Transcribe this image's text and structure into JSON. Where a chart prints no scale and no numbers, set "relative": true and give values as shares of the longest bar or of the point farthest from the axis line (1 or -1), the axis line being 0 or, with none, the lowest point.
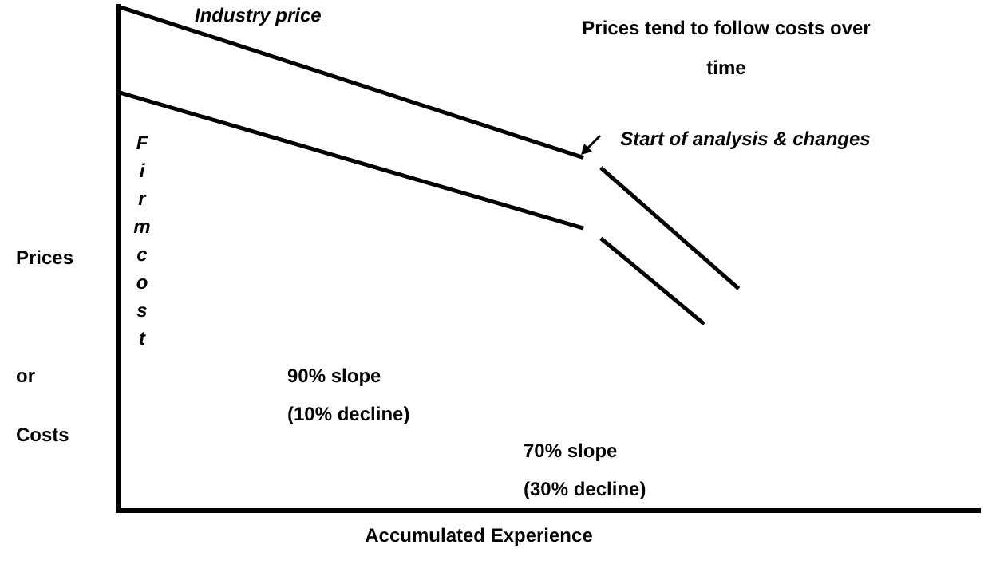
{
  "chart_data": {
    "type": "line",
    "relative": true,
    "grid": false,
    "legend": false,
    "marker": "none",
    "line_style": "solid",
    "xlabel": "Accumulated Experience",
    "ylabel": "Prices or Costs",
    "categories": [
      null,
      null,
      null,
      null,
      null,
      null,
      null,
      null,
      null,
      null,
      null,
      null,
      null,
      null,
      null,
      null,
      null,
      null,
      null,
      null,
      null,
      null,
      null,
      null,
      null,
      null,
      null,
      null,
      null,
      null,
      null,
      null,
      null,
      null,
      null,
      null,
      null,
      null,
      null,
      null,
      null,
      null,
      null,
      null,
      null,
      null,
      null,
      null,
      null,
      null,
      null
    ],
    "series": [
      {
        "name": "Industry price",
        "color": "#000000",
        "values": [
          1,
          null,
          null,
          null,
          null,
          null,
          null,
          null,
          null,
          null,
          null,
          null,
          null,
          null,
          null,
          null,
          null,
          null,
          null,
          null,
          null,
          null,
          null,
          null,
          null,
          null,
          null,
          0.7,
          null,
          null,
          null,
          null,
          null,
          null,
          null,
          null,
          null,
          null,
          null,
          null,
          null,
          null,
          null,
          null,
          null,
          null,
          null,
          null,
          null,
          null,
          null
        ]
      },
      {
        "color": "#000000",
        "values": [
          null,
          null,
          null,
          null,
          null,
          null,
          null,
          null,
          null,
          null,
          null,
          null,
          null,
          null,
          null,
          null,
          null,
          null,
          null,
          null,
          null,
          null,
          null,
          null,
          null,
          null,
          null,
          null,
          0.68,
          null,
          null,
          null,
          null,
          null,
          null,
          null,
          0.44,
          null,
          null,
          null,
          null,
          null,
          null,
          null,
          null,
          null,
          null,
          null,
          null,
          null,
          null
        ]
      },
      {
        "name": "Firm cost",
        "color": "#000000",
        "values": [
          0.83,
          null,
          null,
          null,
          null,
          null,
          null,
          null,
          null,
          null,
          null,
          null,
          null,
          null,
          null,
          null,
          null,
          null,
          null,
          null,
          null,
          null,
          null,
          null,
          null,
          null,
          null,
          0.56,
          null,
          null,
          null,
          null,
          null,
          null,
          null,
          null,
          null,
          null,
          null,
          null,
          null,
          null,
          null,
          null,
          null,
          null,
          null,
          null,
          null,
          null,
          null
        ]
      },
      {
        "color": "#000000",
        "values": [
          null,
          null,
          null,
          null,
          null,
          null,
          null,
          null,
          null,
          null,
          null,
          null,
          null,
          null,
          null,
          null,
          null,
          null,
          null,
          null,
          null,
          null,
          null,
          null,
          null,
          null,
          null,
          null,
          0.54,
          null,
          null,
          null,
          null,
          null,
          0.37,
          null,
          null,
          null,
          null,
          null,
          null,
          null,
          null,
          null,
          null,
          null,
          null,
          null,
          null,
          null,
          null
        ]
      }
    ],
    "annotations": [
      "Prices tend to follow costs over time",
      "Start of analysis & changes",
      "90% slope (10% decline)",
      "70% slope (30% decline)"
    ]
  }
}
